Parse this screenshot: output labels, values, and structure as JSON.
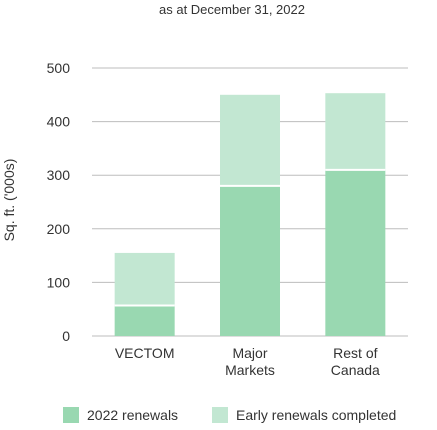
{
  "chart_data": {
    "type": "bar",
    "stacked": true,
    "subtitle": "as at December 31, 2022",
    "ylabel": "Sq. ft. ('000s)",
    "xlabel": "",
    "ylim": [
      0,
      500
    ],
    "yticks": [
      0,
      100,
      200,
      300,
      400,
      500
    ],
    "categories": [
      [
        "VECTOM"
      ],
      [
        "Major",
        "Markets"
      ],
      [
        "Rest of",
        "Canada"
      ]
    ],
    "series": [
      {
        "name": "2022 renewals",
        "color": "#99d8b1",
        "values": [
          57,
          280,
          310
        ]
      },
      {
        "name": "Early renewals completed",
        "color": "#c2e7d2",
        "values": [
          98,
          170,
          143
        ]
      }
    ],
    "grid": true,
    "legend_position": "bottom"
  }
}
